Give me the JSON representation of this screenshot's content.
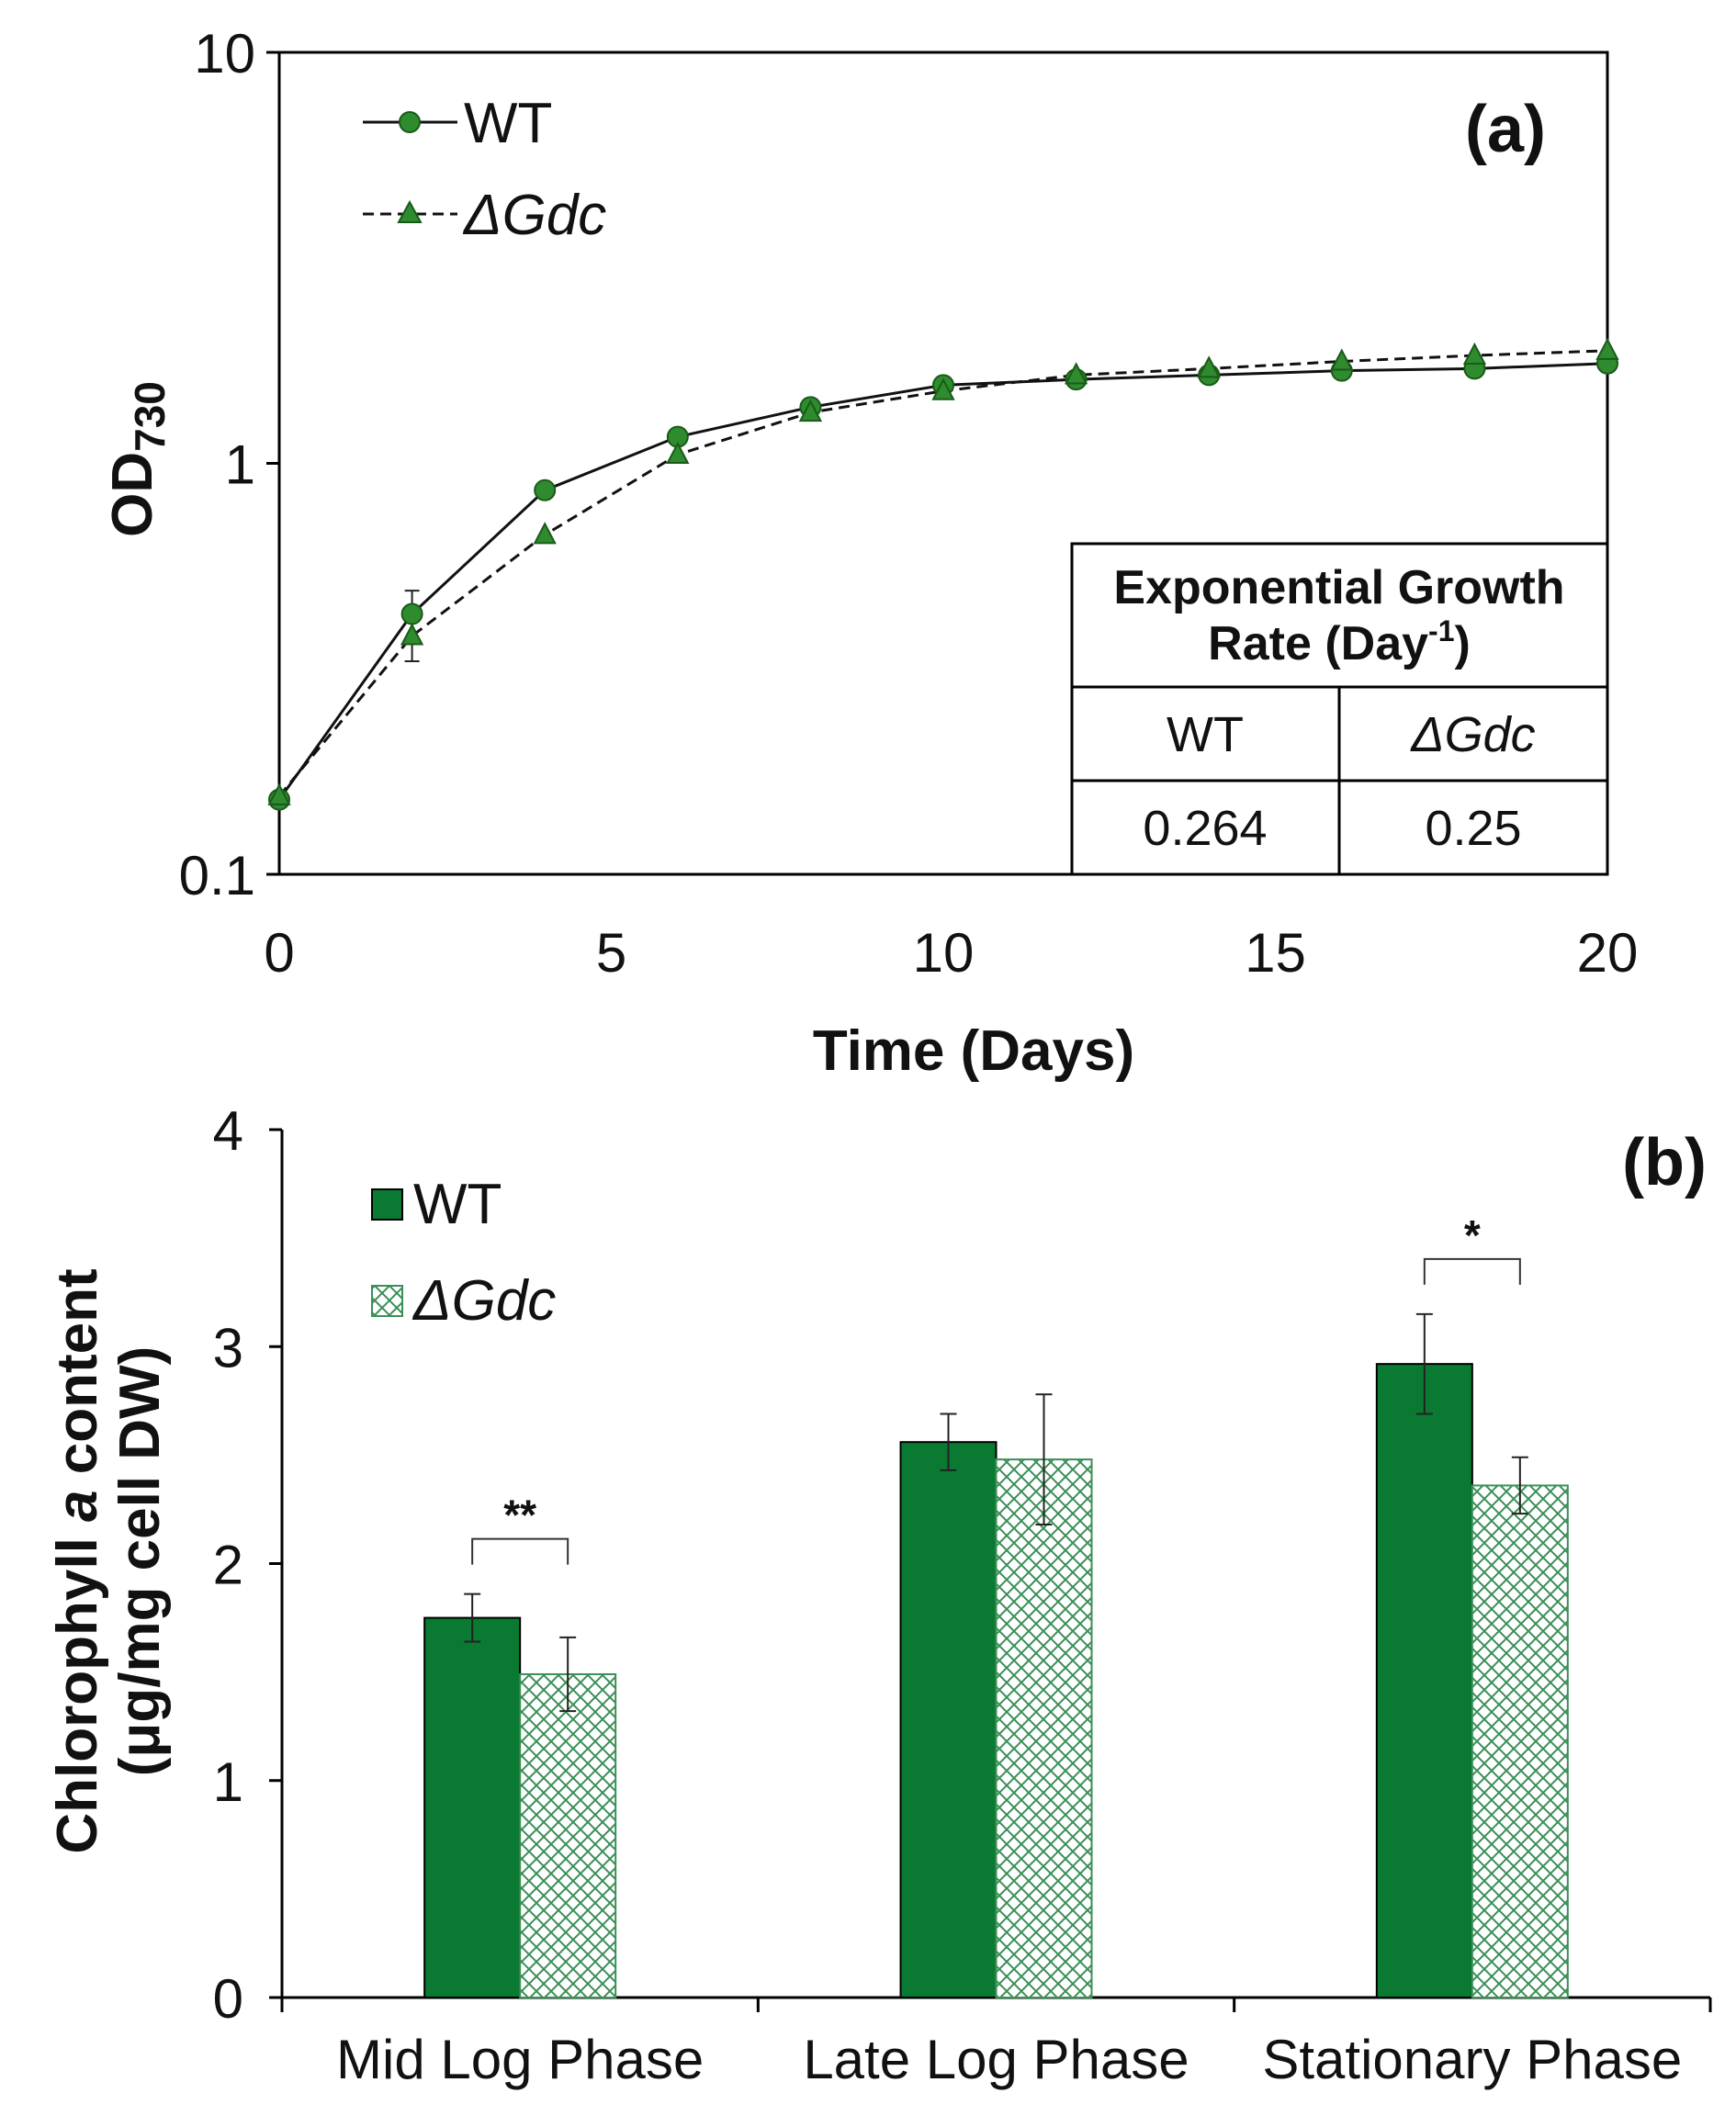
{
  "chart_data": [
    {
      "type": "line",
      "panel_label": "(a)",
      "xlabel": "Time (Days)",
      "ylabel": "OD",
      "ylabel_subscript": "730",
      "yscale": "log",
      "xlim": [
        0,
        20
      ],
      "ylim": [
        0.1,
        10
      ],
      "xticks": [
        0,
        5,
        10,
        15,
        20
      ],
      "xtick_labels": [
        "0",
        "5",
        "10",
        "15",
        "20"
      ],
      "yticks": [
        0.1,
        1,
        10
      ],
      "ytick_labels": [
        "0.1",
        "1",
        "10"
      ],
      "legend_position": "top-left",
      "x": [
        0,
        2,
        4,
        6,
        8,
        10,
        12,
        14,
        16,
        18,
        20
      ],
      "series": [
        {
          "name": "WT",
          "italic": false,
          "marker": "circle",
          "linestyle": "solid",
          "values": [
            0.152,
            0.43,
            0.86,
            1.16,
            1.37,
            1.55,
            1.6,
            1.64,
            1.68,
            1.7,
            1.75
          ],
          "error": [
            0,
            0.06,
            0,
            0,
            0,
            0,
            0,
            0,
            0,
            0,
            0
          ]
        },
        {
          "name": "ΔGdc",
          "italic": true,
          "marker": "triangle",
          "linestyle": "dashed",
          "values": [
            0.155,
            0.38,
            0.67,
            1.05,
            1.33,
            1.5,
            1.64,
            1.7,
            1.77,
            1.83,
            1.88
          ],
          "error": [
            0,
            0.05,
            0,
            0,
            0,
            0,
            0,
            0,
            0,
            0,
            0
          ]
        }
      ],
      "inset_table": {
        "header_line1": "Exponential Growth",
        "header_line2_pre": "Rate (Day",
        "header_line2_sup": "-1",
        "header_line2_post": ")",
        "columns": [
          "WT",
          "ΔGdc"
        ],
        "values": [
          "0.264",
          "0.25"
        ]
      },
      "marker_color": "#2e8b2e",
      "marker_edge": "#1a5a1a"
    },
    {
      "type": "bar",
      "panel_label": "(b)",
      "ylabel_line1_pre": "Chlorophyll ",
      "ylabel_line1_italic": "a",
      "ylabel_line1_post": " content",
      "ylabel_line2": "(μg/mg cell DW)",
      "xlabel": "",
      "ylim": [
        0,
        4
      ],
      "yticks": [
        0,
        1,
        2,
        3,
        4
      ],
      "ytick_labels": [
        "0",
        "1",
        "2",
        "3",
        "4"
      ],
      "categories": [
        "Mid Log Phase",
        "Late Log Phase",
        "Stationary Phase"
      ],
      "legend_position": "top-left",
      "series": [
        {
          "name": "WT",
          "italic": false,
          "fill": "solid",
          "values": [
            1.75,
            2.56,
            2.92
          ],
          "error": [
            0.11,
            0.13,
            0.23
          ]
        },
        {
          "name": "ΔGdc",
          "italic": true,
          "fill": "crosshatch",
          "values": [
            1.49,
            2.48,
            2.36
          ],
          "error": [
            0.17,
            0.3,
            0.13
          ]
        }
      ],
      "significance": [
        {
          "category_index": 0,
          "label": "**"
        },
        {
          "category_index": 2,
          "label": "*"
        }
      ],
      "bar_color": "#0a7a32",
      "hatch_color": "#3b8f57"
    }
  ]
}
